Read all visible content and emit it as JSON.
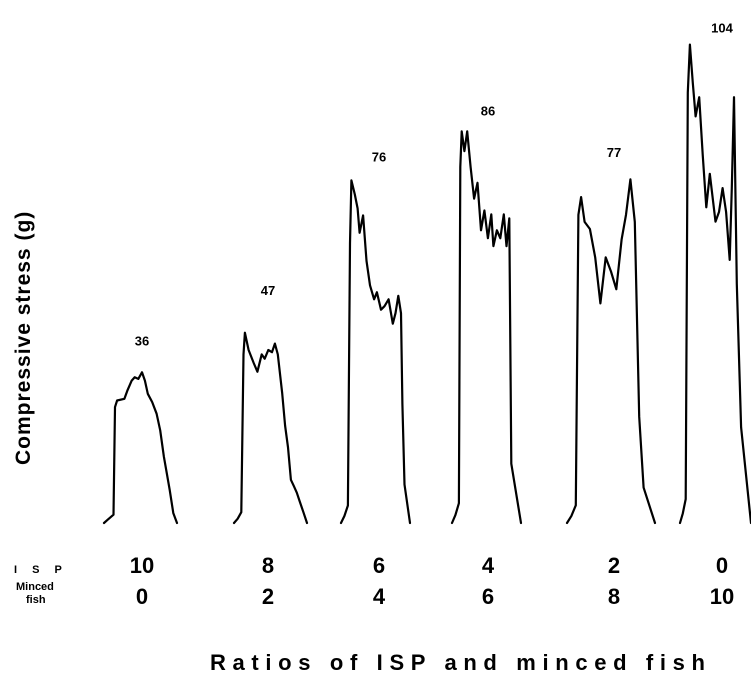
{
  "chart_data": {
    "type": "line",
    "title": "",
    "xlabel": "Ratios of ISP and minced fish",
    "ylabel": "Compressive stress (g)",
    "row_labels": {
      "isp": "I S P",
      "minced": "Minced",
      "fish": "fish"
    },
    "grid": false,
    "legend": "none",
    "series": [
      {
        "isp": "10",
        "minced_fish": "0",
        "peak": 36,
        "peak_label": "36"
      },
      {
        "isp": "8",
        "minced_fish": "2",
        "peak": 47,
        "peak_label": "47"
      },
      {
        "isp": "6",
        "minced_fish": "4",
        "peak": 76,
        "peak_label": "76"
      },
      {
        "isp": "4",
        "minced_fish": "6",
        "peak": 86,
        "peak_label": "86"
      },
      {
        "isp": "2",
        "minced_fish": "8",
        "peak": 77,
        "peak_label": "77"
      },
      {
        "isp": "0",
        "minced_fish": "10",
        "peak": 104,
        "peak_label": "104"
      }
    ]
  }
}
